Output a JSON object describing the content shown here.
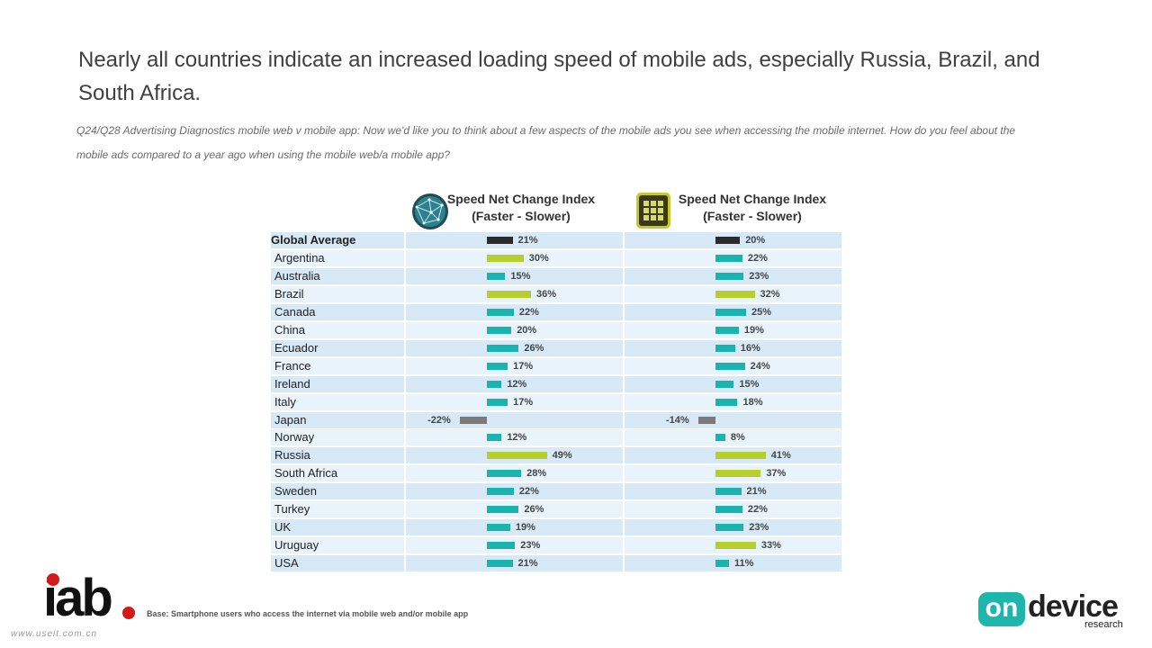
{
  "title": "Nearly all countries indicate an increased loading speed of mobile ads, especially Russia, Brazil, and South Africa.",
  "subtitle": "Q24/Q28 Advertising Diagnostics mobile web v mobile app: Now we'd like you to think about a few aspects of the mobile ads you see when accessing the mobile internet. How do you feel about the mobile ads compared to a year ago when using the mobile web/a mobile app?",
  "footer": {
    "base": "Base: Smartphone users who access the internet via mobile web and/or mobile app",
    "logo_left": "iab",
    "logo_right_main": "device",
    "logo_right_bubble": "on",
    "logo_right_sub": "research",
    "watermark": "www.useit.com.cn"
  },
  "icons": {
    "web": "globe-icon",
    "app": "app-grid-icon"
  },
  "colors": {
    "global": "#2b2b2b",
    "normal": "#19b3b0",
    "highlight": "#b7cf2c",
    "negative": "#7a7a7a",
    "row": "#d7e9f6",
    "row_alt": "#e9f3fb"
  },
  "chart_data": {
    "type": "bar",
    "series": [
      {
        "name": "Speed Net Change Index (Faster - Slower)",
        "label_lines": [
          "Speed Net Change Index",
          "(Faster - Slower)"
        ],
        "icon": "globe-icon",
        "values": [
          21,
          30,
          15,
          36,
          22,
          20,
          26,
          17,
          12,
          17,
          -22,
          12,
          49,
          28,
          22,
          26,
          19,
          23,
          21
        ],
        "highlight": [
          "Argentina",
          "Brazil",
          "Russia"
        ]
      },
      {
        "name": "Speed Net Change Index (Faster - Slower)",
        "label_lines": [
          "Speed Net Change Index",
          "(Faster - Slower)"
        ],
        "icon": "app-grid-icon",
        "values": [
          20,
          22,
          23,
          32,
          25,
          19,
          16,
          24,
          15,
          18,
          -14,
          8,
          41,
          37,
          21,
          22,
          23,
          33,
          11
        ],
        "highlight": [
          "Brazil",
          "Russia",
          "South Africa",
          "Uruguay"
        ]
      }
    ],
    "categories": [
      "Global Average",
      "Argentina",
      "Australia",
      "Brazil",
      "Canada",
      "China",
      "Ecuador",
      "France",
      "Ireland",
      "Italy",
      "Japan",
      "Norway",
      "Russia",
      "South Africa",
      "Sweden",
      "Turkey",
      "UK",
      "Uruguay",
      "USA"
    ],
    "unit": "%",
    "orientation": "horizontal"
  }
}
